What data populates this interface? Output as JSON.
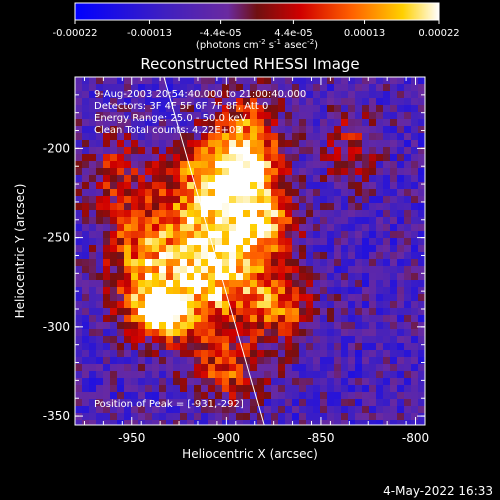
{
  "colorbar": {
    "tick_labels": [
      "-0.00022",
      "-0.00013",
      "-4.4e-05",
      "4.4e-05",
      "0.00013",
      "0.00022"
    ],
    "tick_values": [
      -0.00022,
      -0.00013,
      -4.4e-05,
      4.4e-05,
      0.00013,
      0.00022
    ],
    "range": [
      -0.00022,
      0.00022
    ],
    "unit_label": "(photons cm-2 s-1 asec-2)"
  },
  "chart_data": {
    "type": "heatmap",
    "title": "Reconstructed RHESSI Image",
    "xlabel": "Heliocentric X (arcsec)",
    "ylabel": "Heliocentric Y (arcsec)",
    "xlim": [
      -980,
      -795
    ],
    "ylim": [
      -355,
      -160
    ],
    "x_ticks": [
      -950,
      -900,
      -850,
      -800
    ],
    "x_tick_labels": [
      "-950",
      "-900",
      "-850",
      "-800"
    ],
    "y_ticks": [
      -200,
      -250,
      -300,
      -350
    ],
    "y_tick_labels": [
      "-200",
      "-250",
      "-300",
      "-350"
    ],
    "limb_line": {
      "x": [
        -933,
        -880
      ],
      "y": [
        -160,
        -355
      ]
    },
    "info_lines": [
      "9-Aug-2003 20:54:40.000 to 21:00:40.000",
      "Detectors: 3F 4F 5F 6F 7F 8F, Att 0",
      "Energy Range: 25.0 - 50.0 keV",
      "Clean    Total counts: 4.22E+03"
    ],
    "peak_label": "Position of Peak = [-931,-292]",
    "peak": [
      -931,
      -292
    ],
    "emission_sources": [
      {
        "x": -905,
        "y": -262,
        "amp": 0.95,
        "sx": 20,
        "sy": 28
      },
      {
        "x": -935,
        "y": -292,
        "amp": 0.9,
        "sx": 12,
        "sy": 10
      },
      {
        "x": -945,
        "y": -260,
        "amp": 0.55,
        "sx": 14,
        "sy": 22
      },
      {
        "x": -888,
        "y": -205,
        "amp": 0.75,
        "sx": 12,
        "sy": 24
      },
      {
        "x": -910,
        "y": -215,
        "amp": 0.5,
        "sx": 16,
        "sy": 16
      },
      {
        "x": -870,
        "y": -290,
        "amp": 0.5,
        "sx": 12,
        "sy": 14
      },
      {
        "x": -900,
        "y": -325,
        "amp": 0.45,
        "sx": 14,
        "sy": 12
      },
      {
        "x": -960,
        "y": -215,
        "amp": 0.35,
        "sx": 12,
        "sy": 18
      },
      {
        "x": -835,
        "y": -200,
        "amp": 0.35,
        "sx": 10,
        "sy": 16
      },
      {
        "x": -875,
        "y": -240,
        "amp": 0.35,
        "sx": 10,
        "sy": 14
      }
    ]
  },
  "footer": {
    "date": "4-May-2022 16:33"
  }
}
